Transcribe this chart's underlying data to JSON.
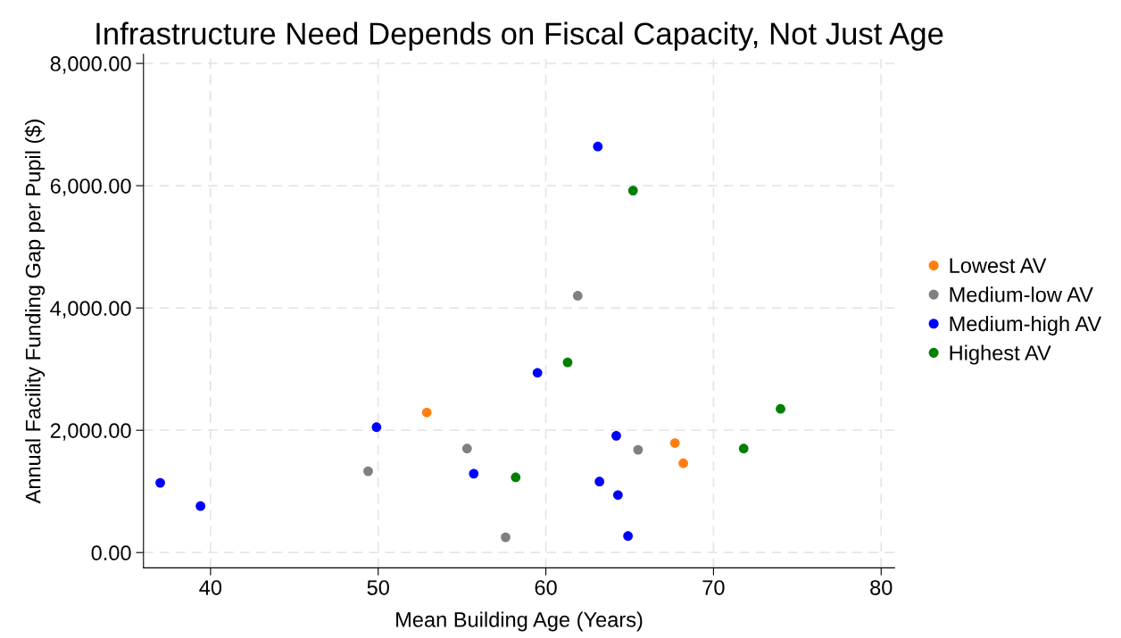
{
  "chart_data": {
    "type": "scatter",
    "title": "Infrastructure Need Depends on Fiscal Capacity, Not Just Age",
    "xlabel": "Mean Building Age (Years)",
    "ylabel": "Annual Facility Funding Gap per Pupil ($)",
    "series": [
      {
        "name": "Lowest AV",
        "color": "#ff7f0e",
        "x": [
          52.9,
          67.7,
          68.2
        ],
        "values": [
          2290,
          1790,
          1460
        ]
      },
      {
        "name": "Medium-low AV",
        "color": "#808080",
        "x": [
          49.4,
          55.3,
          57.6,
          61.9,
          65.5
        ],
        "values": [
          1330,
          1700,
          250,
          4200,
          1680
        ]
      },
      {
        "name": "Medium-high AV",
        "color": "#0000ff",
        "x": [
          37.0,
          39.4,
          49.9,
          55.7,
          59.5,
          63.1,
          63.2,
          64.2,
          64.3,
          64.9
        ],
        "values": [
          1140,
          760,
          2050,
          1290,
          2940,
          6640,
          1160,
          1910,
          940,
          270
        ]
      },
      {
        "name": "Highest AV",
        "color": "#008000",
        "x": [
          58.2,
          61.3,
          65.2,
          71.8,
          74.0
        ],
        "values": [
          1230,
          3110,
          5920,
          1700,
          2350
        ]
      }
    ],
    "xlim": [
      36,
      80.8
    ],
    "xticks": [
      40,
      50,
      60,
      70,
      80
    ],
    "ylim": [
      -250,
      8150
    ],
    "yticks": [
      {
        "value": 0,
        "label": "0.00"
      },
      {
        "value": 2000,
        "label": "2,000.00"
      },
      {
        "value": 4000,
        "label": "4,000.00"
      },
      {
        "value": 6000,
        "label": "6,000.00"
      },
      {
        "value": 8000,
        "label": "8,000.00"
      }
    ],
    "grid": true,
    "legend": "right",
    "marker": "circle"
  }
}
